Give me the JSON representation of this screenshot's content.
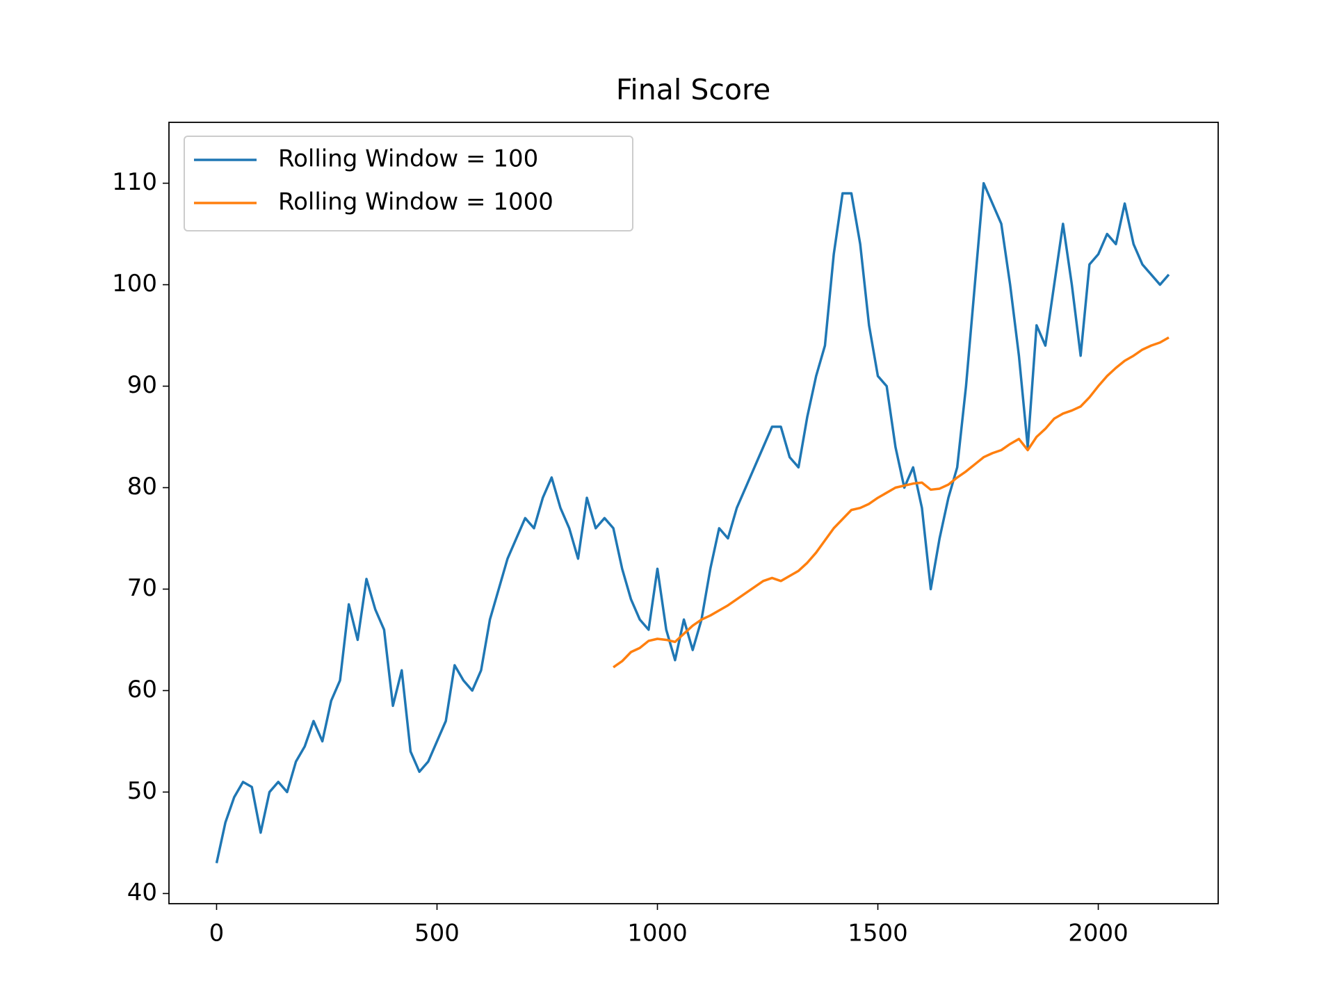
{
  "chart_data": {
    "type": "line",
    "title": "Final Score",
    "x": [
      0,
      20,
      40,
      60,
      80,
      100,
      120,
      140,
      160,
      180,
      200,
      220,
      240,
      260,
      280,
      300,
      320,
      340,
      360,
      380,
      400,
      420,
      440,
      460,
      480,
      500,
      520,
      540,
      560,
      580,
      600,
      620,
      640,
      660,
      680,
      700,
      720,
      740,
      760,
      780,
      800,
      820,
      840,
      860,
      880,
      900,
      920,
      940,
      960,
      980,
      1000,
      1020,
      1040,
      1060,
      1080,
      1100,
      1120,
      1140,
      1160,
      1180,
      1200,
      1220,
      1240,
      1260,
      1280,
      1300,
      1320,
      1340,
      1360,
      1380,
      1400,
      1420,
      1440,
      1460,
      1480,
      1500,
      1520,
      1540,
      1560,
      1580,
      1600,
      1620,
      1640,
      1660,
      1680,
      1700,
      1720,
      1740,
      1760,
      1780,
      1800,
      1820,
      1840,
      1860,
      1880,
      1900,
      1920,
      1940,
      1960,
      1980,
      2000,
      2020,
      2040,
      2060,
      2080,
      2100,
      2120,
      2140,
      2160
    ],
    "series": [
      {
        "name": "Rolling Window = 100",
        "color": "#1f77b4",
        "values": [
          43,
          47,
          49.5,
          51,
          50.5,
          46,
          50,
          51,
          50,
          53,
          54.5,
          57,
          55,
          59,
          61,
          68.5,
          65,
          71,
          68,
          66,
          58.5,
          62,
          54,
          52,
          53,
          55,
          57,
          62.5,
          61,
          60,
          62,
          67,
          70,
          73,
          75,
          77,
          76,
          79,
          81,
          78,
          76,
          73,
          79,
          76,
          77,
          76,
          72,
          69,
          67,
          66,
          72,
          66,
          63,
          67,
          64,
          67,
          72,
          76,
          75,
          78,
          80,
          82,
          84,
          86,
          86,
          83,
          82,
          87,
          91,
          94,
          103,
          109,
          109,
          104,
          96,
          91,
          90,
          84,
          80,
          82,
          78,
          70,
          75,
          79,
          82,
          90,
          100,
          110,
          108,
          106,
          100,
          93,
          84,
          96,
          94,
          100,
          106,
          100,
          93,
          102,
          103,
          105,
          104,
          108,
          104,
          102,
          101,
          100,
          101
        ]
      },
      {
        "name": "Rolling Window = 1000",
        "color": "#ff7f0e",
        "values": [
          null,
          null,
          null,
          null,
          null,
          null,
          null,
          null,
          null,
          null,
          null,
          null,
          null,
          null,
          null,
          null,
          null,
          null,
          null,
          null,
          null,
          null,
          null,
          null,
          null,
          null,
          null,
          null,
          null,
          null,
          null,
          null,
          null,
          null,
          null,
          null,
          null,
          null,
          null,
          null,
          null,
          null,
          null,
          null,
          null,
          62.3,
          62.9,
          63.8,
          64.2,
          64.9,
          65.1,
          65,
          64.8,
          65.6,
          66.4,
          67,
          67.4,
          67.9,
          68.4,
          69,
          69.6,
          70.2,
          70.8,
          71.1,
          70.8,
          71.3,
          71.8,
          72.6,
          73.6,
          74.8,
          76,
          76.9,
          77.8,
          78,
          78.4,
          79,
          79.5,
          80,
          80.2,
          80.4,
          80.5,
          79.8,
          79.9,
          80.3,
          81,
          81.6,
          82.3,
          83,
          83.4,
          83.7,
          84.3,
          84.8,
          83.7,
          85,
          85.8,
          86.8,
          87.3,
          87.6,
          88,
          88.9,
          90,
          91,
          91.8,
          92.5,
          93,
          93.6,
          94,
          94.3,
          94.8
        ]
      }
    ],
    "xlim": [
      -108,
      2272
    ],
    "xticks": [
      0,
      500,
      1000,
      1500,
      2000
    ],
    "ylim": [
      39,
      116
    ],
    "yticks": [
      40,
      50,
      60,
      70,
      80,
      90,
      100,
      110
    ],
    "legend": "upper left"
  }
}
